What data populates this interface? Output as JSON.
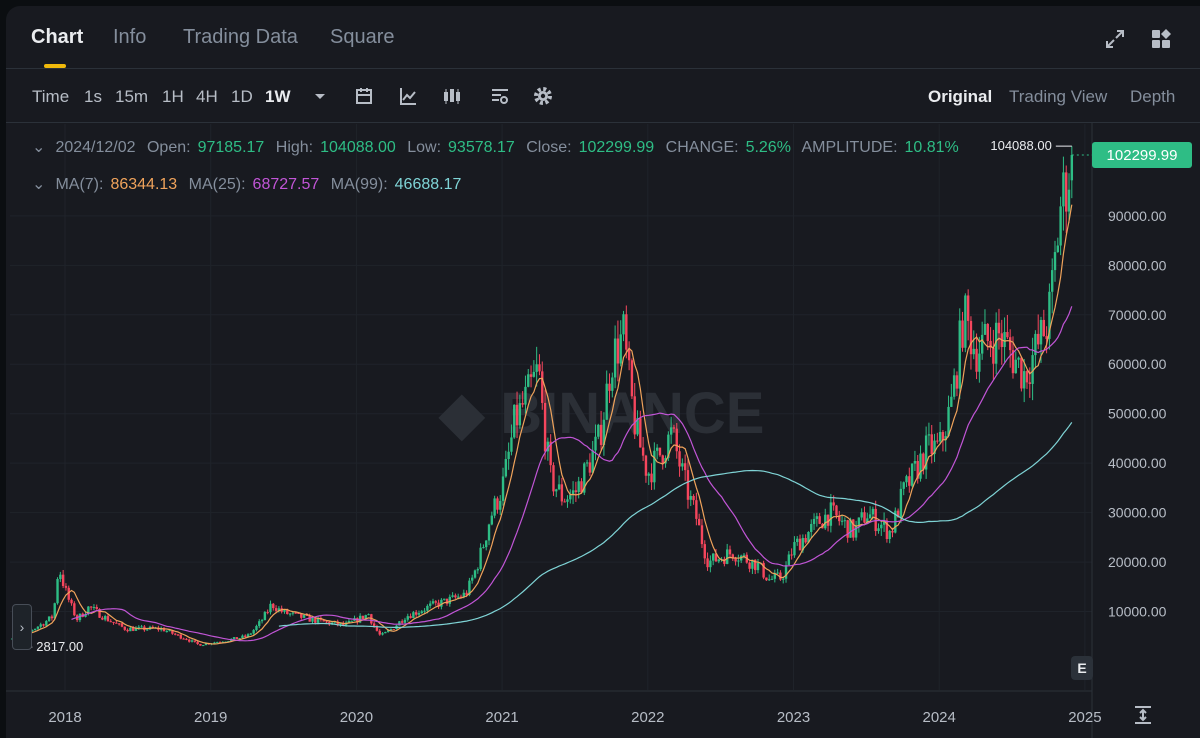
{
  "tabs": [
    "Chart",
    "Info",
    "Trading Data",
    "Square"
  ],
  "header_icons": [
    "expand-icon",
    "layout-icon"
  ],
  "toolbar": {
    "intervals": [
      "Time",
      "1s",
      "15m",
      "1H",
      "4H",
      "1D",
      "1W"
    ],
    "active_interval": "1W",
    "dropdown_icon": "caret-down-icon",
    "tool_icons": [
      "calendar-icon",
      "indicator-icon",
      "candle-type-icon",
      "chart-settings-icon",
      "gear-icon"
    ],
    "views": [
      "Original",
      "Trading View",
      "Depth"
    ],
    "active_view": "Original"
  },
  "ohlc": {
    "date": "2024/12/02",
    "open_label": "Open:",
    "open": "97185.17",
    "high_label": "High:",
    "high": "104088.00",
    "low_label": "Low:",
    "low": "93578.17",
    "close_label": "Close:",
    "close": "102299.99",
    "change_label": "CHANGE:",
    "change": "5.26%",
    "amplitude_label": "AMPLITUDE:",
    "amplitude": "10.81%"
  },
  "ma": {
    "ma7_label": "MA(7):",
    "ma7": "86344.13",
    "ma25_label": "MA(25):",
    "ma25": "68727.57",
    "ma99_label": "MA(99):",
    "ma99": "46688.17"
  },
  "watermark": "BINANCE",
  "colors": {
    "up": "#2ebd85",
    "down": "#f6465d",
    "ma7": "#f0a35b",
    "ma25": "#c155d6",
    "ma99": "#7fd4d6",
    "accent": "#f0b90b"
  },
  "chart_data": {
    "type": "candlestick",
    "symbol_interval": "1W",
    "y_axis_ticks": [
      10000,
      20000,
      30000,
      40000,
      50000,
      60000,
      70000,
      80000,
      90000
    ],
    "y_axis_labels": [
      "10000.00",
      "20000.00",
      "30000.00",
      "40000.00",
      "50000.00",
      "60000.00",
      "70000.00",
      "80000.00",
      "90000.00"
    ],
    "x_axis_labels": [
      "2018",
      "2019",
      "2020",
      "2021",
      "2022",
      "2023",
      "2024",
      "2025"
    ],
    "last_price": "102299.99",
    "high_marker": "104088.00",
    "low_marker": "2817.00",
    "ylim": [
      0,
      110000
    ],
    "price_path": [
      [
        "2017-08",
        4000
      ],
      [
        "2017-12",
        9000
      ],
      [
        "2017-12-15",
        19500
      ],
      [
        "2018-02",
        8500
      ],
      [
        "2018-03",
        11000
      ],
      [
        "2018-06",
        6500
      ],
      [
        "2018-09",
        6500
      ],
      [
        "2018-11",
        4500
      ],
      [
        "2018-12",
        3300
      ],
      [
        "2019-04",
        5000
      ],
      [
        "2019-06",
        11500
      ],
      [
        "2019-07",
        9800
      ],
      [
        "2019-10",
        8000
      ],
      [
        "2019-12",
        7200
      ],
      [
        "2020-02",
        9500
      ],
      [
        "2020-03",
        5000
      ],
      [
        "2020-05",
        9000
      ],
      [
        "2020-07",
        11000
      ],
      [
        "2020-10",
        13500
      ],
      [
        "2020-12",
        29000
      ],
      [
        "2021-01",
        35000
      ],
      [
        "2021-02",
        48000
      ],
      [
        "2021-04",
        59000
      ],
      [
        "2021-05",
        37000
      ],
      [
        "2021-06",
        33000
      ],
      [
        "2021-07",
        34000
      ],
      [
        "2021-09",
        45000
      ],
      [
        "2021-10",
        61000
      ],
      [
        "2021-11",
        66000
      ],
      [
        "2021-12",
        47000
      ],
      [
        "2022-01",
        38000
      ],
      [
        "2022-03",
        46000
      ],
      [
        "2022-05",
        29000
      ],
      [
        "2022-06",
        20000
      ],
      [
        "2022-08",
        22000
      ],
      [
        "2022-10",
        19500
      ],
      [
        "2022-11",
        16500
      ],
      [
        "2022-12",
        16800
      ],
      [
        "2023-01",
        23000
      ],
      [
        "2023-03",
        28000
      ],
      [
        "2023-04",
        30000
      ],
      [
        "2023-06",
        26000
      ],
      [
        "2023-07",
        30000
      ],
      [
        "2023-09",
        26000
      ],
      [
        "2023-10",
        34000
      ],
      [
        "2023-12",
        43000
      ],
      [
        "2024-01",
        43000
      ],
      [
        "2024-02",
        52000
      ],
      [
        "2024-03",
        70000
      ],
      [
        "2024-04",
        63000
      ],
      [
        "2024-06",
        66000
      ],
      [
        "2024-08",
        58000
      ],
      [
        "2024-09",
        63000
      ],
      [
        "2024-10",
        69000
      ],
      [
        "2024-11",
        92000
      ],
      [
        "2024-12",
        102300
      ]
    ],
    "ma7": [
      [
        "2024-12",
        86344.13
      ]
    ],
    "ma25": [
      [
        "2024-12",
        68727.57
      ]
    ],
    "ma99": [
      [
        "2024-12",
        46688.17
      ]
    ]
  }
}
